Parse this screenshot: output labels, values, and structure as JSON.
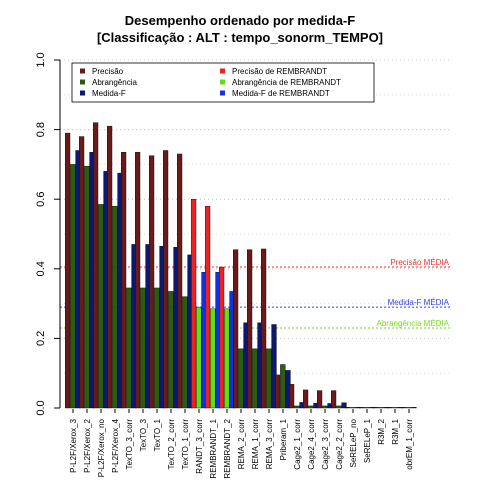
{
  "chart_data": {
    "type": "bar",
    "title": "Desempenho ordenado por medida-F",
    "subtitle": "[Classificação : ALT : tempo_sonorm_TEMPO]",
    "ylim": [
      0,
      1
    ],
    "yticks": [
      "0.0",
      "0.2",
      "0.4",
      "0.6",
      "0.8",
      "1.0"
    ],
    "grid": "horizontal dotted",
    "legend_position": "top",
    "categories": [
      "P-L2F/Xerox_3",
      "P-L2F/Xerox_2",
      "P-L2F/Xerox_no",
      "P-L2F/Xerox_4",
      "TexTO_3_corr",
      "TexTO_3",
      "TexTO_1",
      "TexTO_2_corr",
      "TexTO_1_corr",
      "RANDT_3_corr",
      "REMBRANDT_1",
      "REMBRANDT_2",
      "REMA_2_corr",
      "REMA_1_corr",
      "REMA_3_corr",
      "Priberam_1",
      "Cage2_1_corr",
      "Cage2_4_corr",
      "Cage2_3_corr",
      "Cage2_2_corr",
      "SeRELeP_no",
      "SeRELeP_1",
      "R3M_2",
      "R3M_1",
      "obrEM_1_corr"
    ],
    "highlight_categories": [
      "RANDT_3_corr",
      "REMBRANDT_1",
      "REMBRANDT_2"
    ],
    "series": [
      {
        "name": "Precisão",
        "color": "#6b1a1a",
        "values": [
          0.79,
          0.78,
          0.82,
          0.81,
          0.735,
          0.735,
          0.725,
          0.74,
          0.73,
          0.6,
          0.58,
          0.405,
          0.455,
          0.455,
          0.457,
          0.095,
          0.068,
          0.052,
          0.05,
          0.05,
          0.002,
          0.002,
          0.002,
          0.002,
          0.002
        ]
      },
      {
        "name": "Abrangência",
        "color": "#2e5c0e",
        "values": [
          0.7,
          0.695,
          0.585,
          0.58,
          0.345,
          0.345,
          0.345,
          0.335,
          0.32,
          0.29,
          0.285,
          0.285,
          0.17,
          0.17,
          0.17,
          0.125,
          0.006,
          0.006,
          0.006,
          0.006,
          0.001,
          0.001,
          0.001,
          0.001,
          0.001
        ]
      },
      {
        "name": "Medida-F",
        "color": "#0b1a6e",
        "values": [
          0.74,
          0.735,
          0.68,
          0.675,
          0.47,
          0.47,
          0.465,
          0.462,
          0.44,
          0.39,
          0.39,
          0.335,
          0.245,
          0.245,
          0.24,
          0.108,
          0.016,
          0.014,
          0.013,
          0.015,
          0.002,
          0.002,
          0.002,
          0.002,
          0.002
        ]
      }
    ],
    "highlight_colors": [
      "#ee2222",
      "#66dd11",
      "#1133dd"
    ],
    "legend": [
      {
        "label": "Precisão",
        "color": "#6b1a1a"
      },
      {
        "label": "Precisão  de  REMBRANDT",
        "color": "#ee2222"
      },
      {
        "label": "Abrangência",
        "color": "#2e5c0e"
      },
      {
        "label": "Abrangência  de  REMBRANDT",
        "color": "#66dd11"
      },
      {
        "label": "Medida-F",
        "color": "#0b1a6e"
      },
      {
        "label": "Medida-F  de  REMBRANDT",
        "color": "#1133dd"
      }
    ],
    "reference_lines": [
      {
        "label": "Precisão MÉDIA",
        "value": 0.405,
        "color": "#ee3333"
      },
      {
        "label": "Medida-F MÉDIA",
        "value": 0.29,
        "color": "#3344ee"
      },
      {
        "label": "Abrangência MÉDIA",
        "value": 0.23,
        "color": "#77dd22"
      }
    ]
  }
}
